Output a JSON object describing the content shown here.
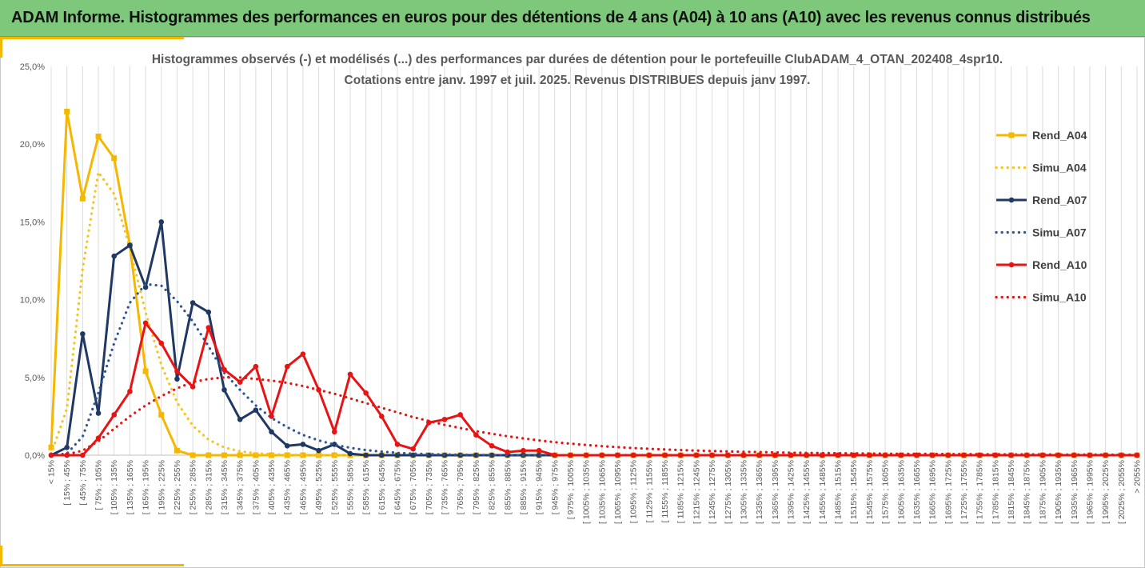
{
  "header": {
    "title": "ADAM Informe. Histogrammes des performances en euros pour des détentions de 4 ans (A04) à 10 ans (A10) avec les revenus connus distribués",
    "background": "#7dc87b"
  },
  "chart_data": {
    "type": "line",
    "title_lines": [
      "Histogrammes observés (-) et modélisés (...) des performances par durées de détention pour le portefeuille ClubADAM_4_OTAN_202408_4spr10.",
      "Cotations entre janv. 1997 et juil. 2025. Revenus DISTRIBUES depuis janv 1997."
    ],
    "ylim": [
      0,
      25
    ],
    "yticks": [
      "0,0%",
      "5,0%",
      "10,0%",
      "15,0%",
      "20,0%",
      "25,0%"
    ],
    "grid": "vertical",
    "legend_position": "right",
    "categories": [
      "< 15%",
      "[ 15% ; 45%",
      "[ 45% ; 75%",
      "[ 75% ; 105%",
      "[ 105% ; 135%",
      "[ 135% ; 165%",
      "[ 165% ; 195%",
      "[ 195% ; 225%",
      "[ 225% ; 255%",
      "[ 255% ; 285%",
      "[ 285% ; 315%",
      "[ 315% ; 345%",
      "[ 345% ; 375%",
      "[ 375% ; 405%",
      "[ 405% ; 435%",
      "[ 435% ; 465%",
      "[ 465% ; 495%",
      "[ 495% ; 525%",
      "[ 525% ; 555%",
      "[ 555% ; 585%",
      "[ 585% ; 615%",
      "[ 615% ; 645%",
      "[ 645% ; 675%",
      "[ 675% ; 705%",
      "[ 705% ; 735%",
      "[ 735% ; 765%",
      "[ 765% ; 795%",
      "[ 795% ; 825%",
      "[ 825% ; 855%",
      "[ 855% ; 885%",
      "[ 885% ; 915%",
      "[ 915% ; 945%",
      "[ 945% ; 975%",
      "[ 975% ; 1005%",
      "[ 1005% ; 1035%",
      "[ 1035% ; 1065%",
      "[ 1065% ; 1095%",
      "[ 1095% ; 1125%",
      "[ 1125% ; 1155%",
      "[ 1155% ; 1185%",
      "[ 1185% ; 1215%",
      "[ 1215% ; 1245%",
      "[ 1245% ; 1275%",
      "[ 1275% ; 1305%",
      "[ 1305% ; 1335%",
      "[ 1335% ; 1365%",
      "[ 1365% ; 1395%",
      "[ 1395% ; 1425%",
      "[ 1425% ; 1455%",
      "[ 1455% ; 1485%",
      "[ 1485% ; 1515%",
      "[ 1515% ; 1545%",
      "[ 1545% ; 1575%",
      "[ 1575% ; 1605%",
      "[ 1605% ; 1635%",
      "[ 1635% ; 1665%",
      "[ 1665% ; 1695%",
      "[ 1695% ; 1725%",
      "[ 1725% ; 1755%",
      "[ 1755% ; 1785%",
      "[ 1785% ; 1815%",
      "[ 1815% ; 1845%",
      "[ 1845% ; 1875%",
      "[ 1875% ; 1905%",
      "[ 1905% ; 1935%",
      "[ 1935% ; 1965%",
      "[ 1965% ; 1995%",
      "[ 1995% ; 2025%",
      "[ 2025% ; 2055%",
      "> 2055%"
    ],
    "series": [
      {
        "name": "Rend_A04",
        "color": "#f5b800",
        "style": "solid",
        "marker": "square",
        "values": [
          0.5,
          22.1,
          16.5,
          20.5,
          19.1,
          13.5,
          5.4,
          2.6,
          0.3,
          0,
          0,
          0,
          0,
          0,
          0,
          0,
          0,
          0,
          0,
          0,
          0,
          0,
          0,
          0,
          0,
          0,
          0,
          0,
          0,
          0,
          0,
          0,
          0,
          0,
          0,
          0,
          0,
          0,
          0,
          0,
          0,
          0,
          0,
          0,
          0,
          0,
          0,
          0,
          0,
          0,
          0,
          0,
          0,
          0,
          0,
          0,
          0,
          0,
          0,
          0,
          0,
          0,
          0,
          0,
          0,
          0,
          0,
          0,
          0,
          0
        ]
      },
      {
        "name": "Simu_A04",
        "color": "#f5c518",
        "style": "dotted",
        "marker": "none",
        "values": [
          0.1,
          3.0,
          12.0,
          18.2,
          16.8,
          13.3,
          9.2,
          5.8,
          3.4,
          1.9,
          1.0,
          0.5,
          0.25,
          0.12,
          0.06,
          0.03,
          0.01,
          0.01,
          0,
          0,
          0,
          0,
          0,
          0,
          0,
          0,
          0,
          0,
          0,
          0,
          0,
          0,
          0,
          0,
          0,
          0,
          0,
          0,
          0,
          0,
          0,
          0,
          0,
          0,
          0,
          0,
          0,
          0,
          0,
          0,
          0,
          0,
          0,
          0,
          0,
          0,
          0,
          0,
          0,
          0,
          0,
          0,
          0,
          0,
          0,
          0,
          0,
          0,
          0,
          0
        ]
      },
      {
        "name": "Rend_A07",
        "color": "#1f3864",
        "style": "solid",
        "marker": "circle",
        "values": [
          0,
          0.5,
          7.8,
          2.7,
          12.8,
          13.5,
          10.8,
          15.0,
          4.9,
          9.8,
          9.2,
          4.2,
          2.3,
          2.9,
          1.5,
          0.6,
          0.7,
          0.3,
          0.7,
          0.1,
          0,
          0,
          0,
          0,
          0,
          0,
          0,
          0,
          0,
          0,
          0,
          0,
          0,
          0,
          0,
          0,
          0,
          0,
          0,
          0,
          0,
          0,
          0,
          0,
          0,
          0,
          0,
          0,
          0,
          0,
          0,
          0,
          0,
          0,
          0,
          0,
          0,
          0,
          0,
          0,
          0,
          0,
          0,
          0,
          0,
          0,
          0,
          0,
          0,
          0
        ]
      },
      {
        "name": "Simu_A07",
        "color": "#2f5597",
        "style": "dotted",
        "marker": "none",
        "values": [
          0,
          0.1,
          1.2,
          4.0,
          7.2,
          9.8,
          11.0,
          10.9,
          9.9,
          8.6,
          7.0,
          5.3,
          4.2,
          3.2,
          2.4,
          1.8,
          1.3,
          0.95,
          0.68,
          0.48,
          0.33,
          0.23,
          0.15,
          0.1,
          0.07,
          0.04,
          0.03,
          0.02,
          0.01,
          0,
          0,
          0,
          0,
          0,
          0,
          0,
          0,
          0,
          0,
          0,
          0,
          0,
          0,
          0,
          0,
          0,
          0,
          0,
          0,
          0,
          0,
          0,
          0,
          0,
          0,
          0,
          0,
          0,
          0,
          0,
          0,
          0,
          0,
          0,
          0,
          0,
          0,
          0,
          0,
          0
        ]
      },
      {
        "name": "Rend_A10",
        "color": "#e81414",
        "style": "solid",
        "marker": "circle",
        "values": [
          0,
          0,
          0,
          1.1,
          2.6,
          4.1,
          8.5,
          7.2,
          5.4,
          4.4,
          8.2,
          5.5,
          4.7,
          5.7,
          2.5,
          5.7,
          6.5,
          4.2,
          1.5,
          5.2,
          4.0,
          2.5,
          0.7,
          0.4,
          2.1,
          2.3,
          2.6,
          1.3,
          0.6,
          0.2,
          0.3,
          0.3,
          0,
          0,
          0,
          0,
          0,
          0,
          0,
          0,
          0,
          0,
          0,
          0,
          0,
          0,
          0,
          0,
          0,
          0,
          0,
          0,
          0,
          0,
          0,
          0,
          0,
          0,
          0,
          0,
          0,
          0,
          0,
          0,
          0,
          0,
          0,
          0,
          0,
          0
        ]
      },
      {
        "name": "Simu_A10",
        "color": "#e81414",
        "style": "dotted",
        "marker": "none",
        "values": [
          0,
          0.05,
          0.3,
          0.9,
          1.7,
          2.5,
          3.2,
          3.8,
          4.3,
          4.7,
          4.9,
          5.0,
          5.0,
          4.9,
          4.8,
          4.65,
          4.45,
          4.2,
          3.95,
          3.65,
          3.35,
          3.05,
          2.75,
          2.45,
          2.2,
          1.95,
          1.75,
          1.55,
          1.38,
          1.22,
          1.08,
          0.95,
          0.84,
          0.74,
          0.66,
          0.58,
          0.52,
          0.46,
          0.41,
          0.37,
          0.33,
          0.3,
          0.27,
          0.24,
          0.22,
          0.2,
          0.18,
          0.16,
          0.15,
          0.14,
          0.13,
          0.12,
          0.11,
          0.1,
          0.09,
          0.08,
          0.08,
          0.07,
          0.07,
          0.06,
          0.06,
          0.05,
          0.05,
          0.05,
          0.04,
          0.04,
          0.04,
          0.04,
          0.03,
          0.03
        ]
      }
    ]
  }
}
